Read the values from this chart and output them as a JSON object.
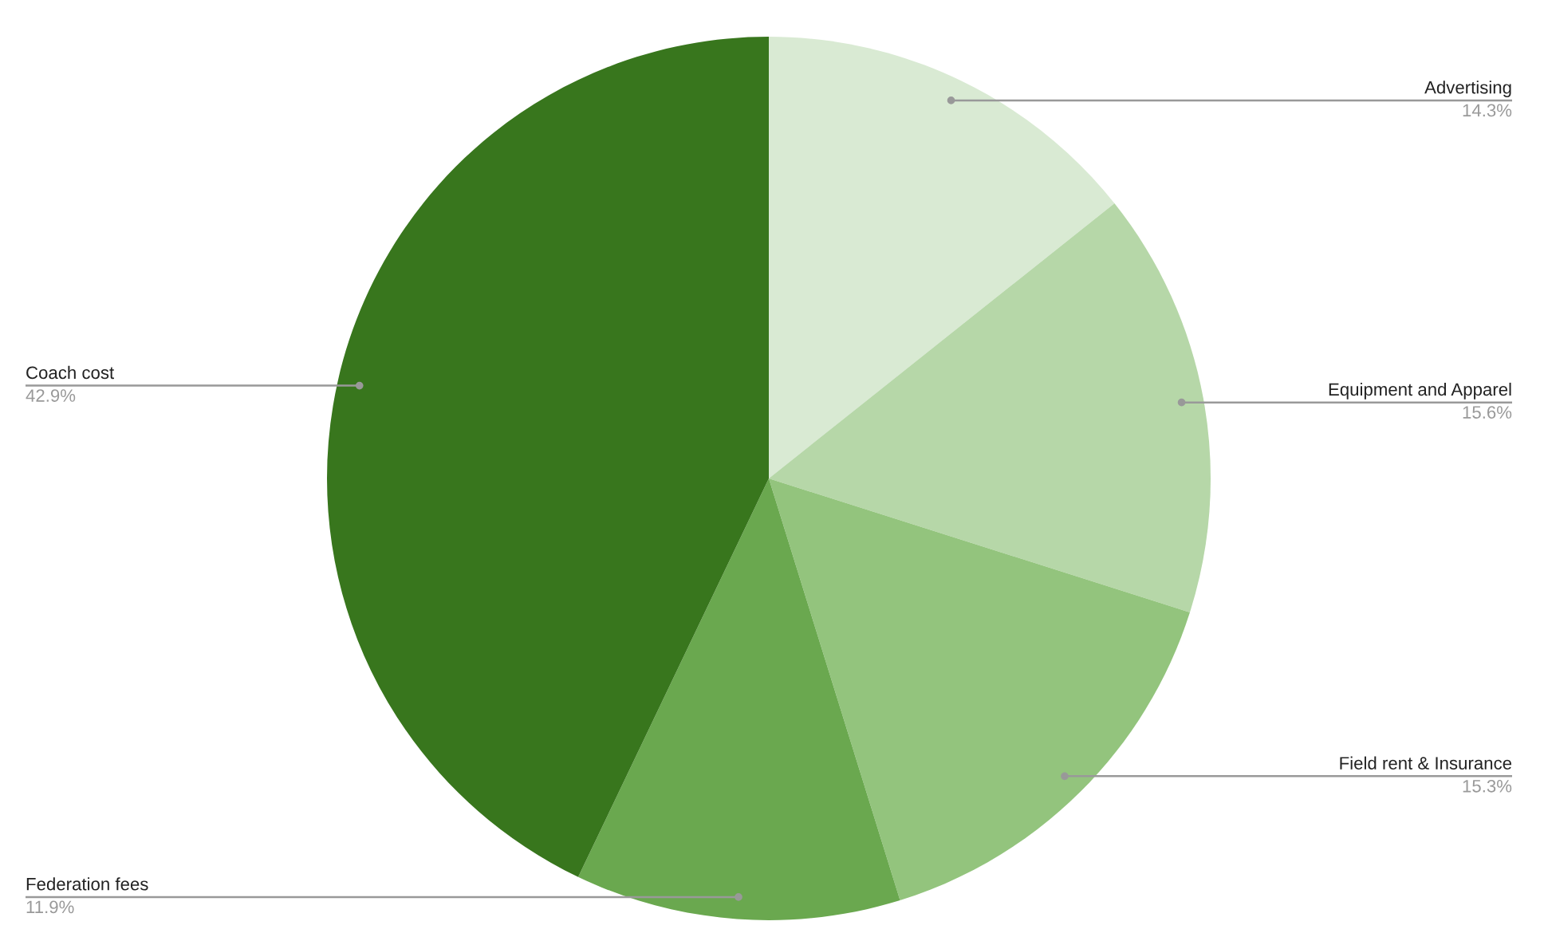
{
  "chart_data": {
    "type": "pie",
    "categories": [
      "Advertising",
      "Equipment and Apparel",
      "Field rent & Insurance",
      "Federation fees",
      "Coach cost"
    ],
    "values": [
      14.3,
      15.6,
      15.3,
      11.9,
      42.9
    ],
    "colors": [
      "#d9ead3",
      "#b6d7a8",
      "#93c47d",
      "#6aa84f",
      "#38761d"
    ],
    "value_labels": [
      "14.3%",
      "15.6%",
      "15.3%",
      "11.9%",
      "42.9%"
    ],
    "legend": false
  }
}
